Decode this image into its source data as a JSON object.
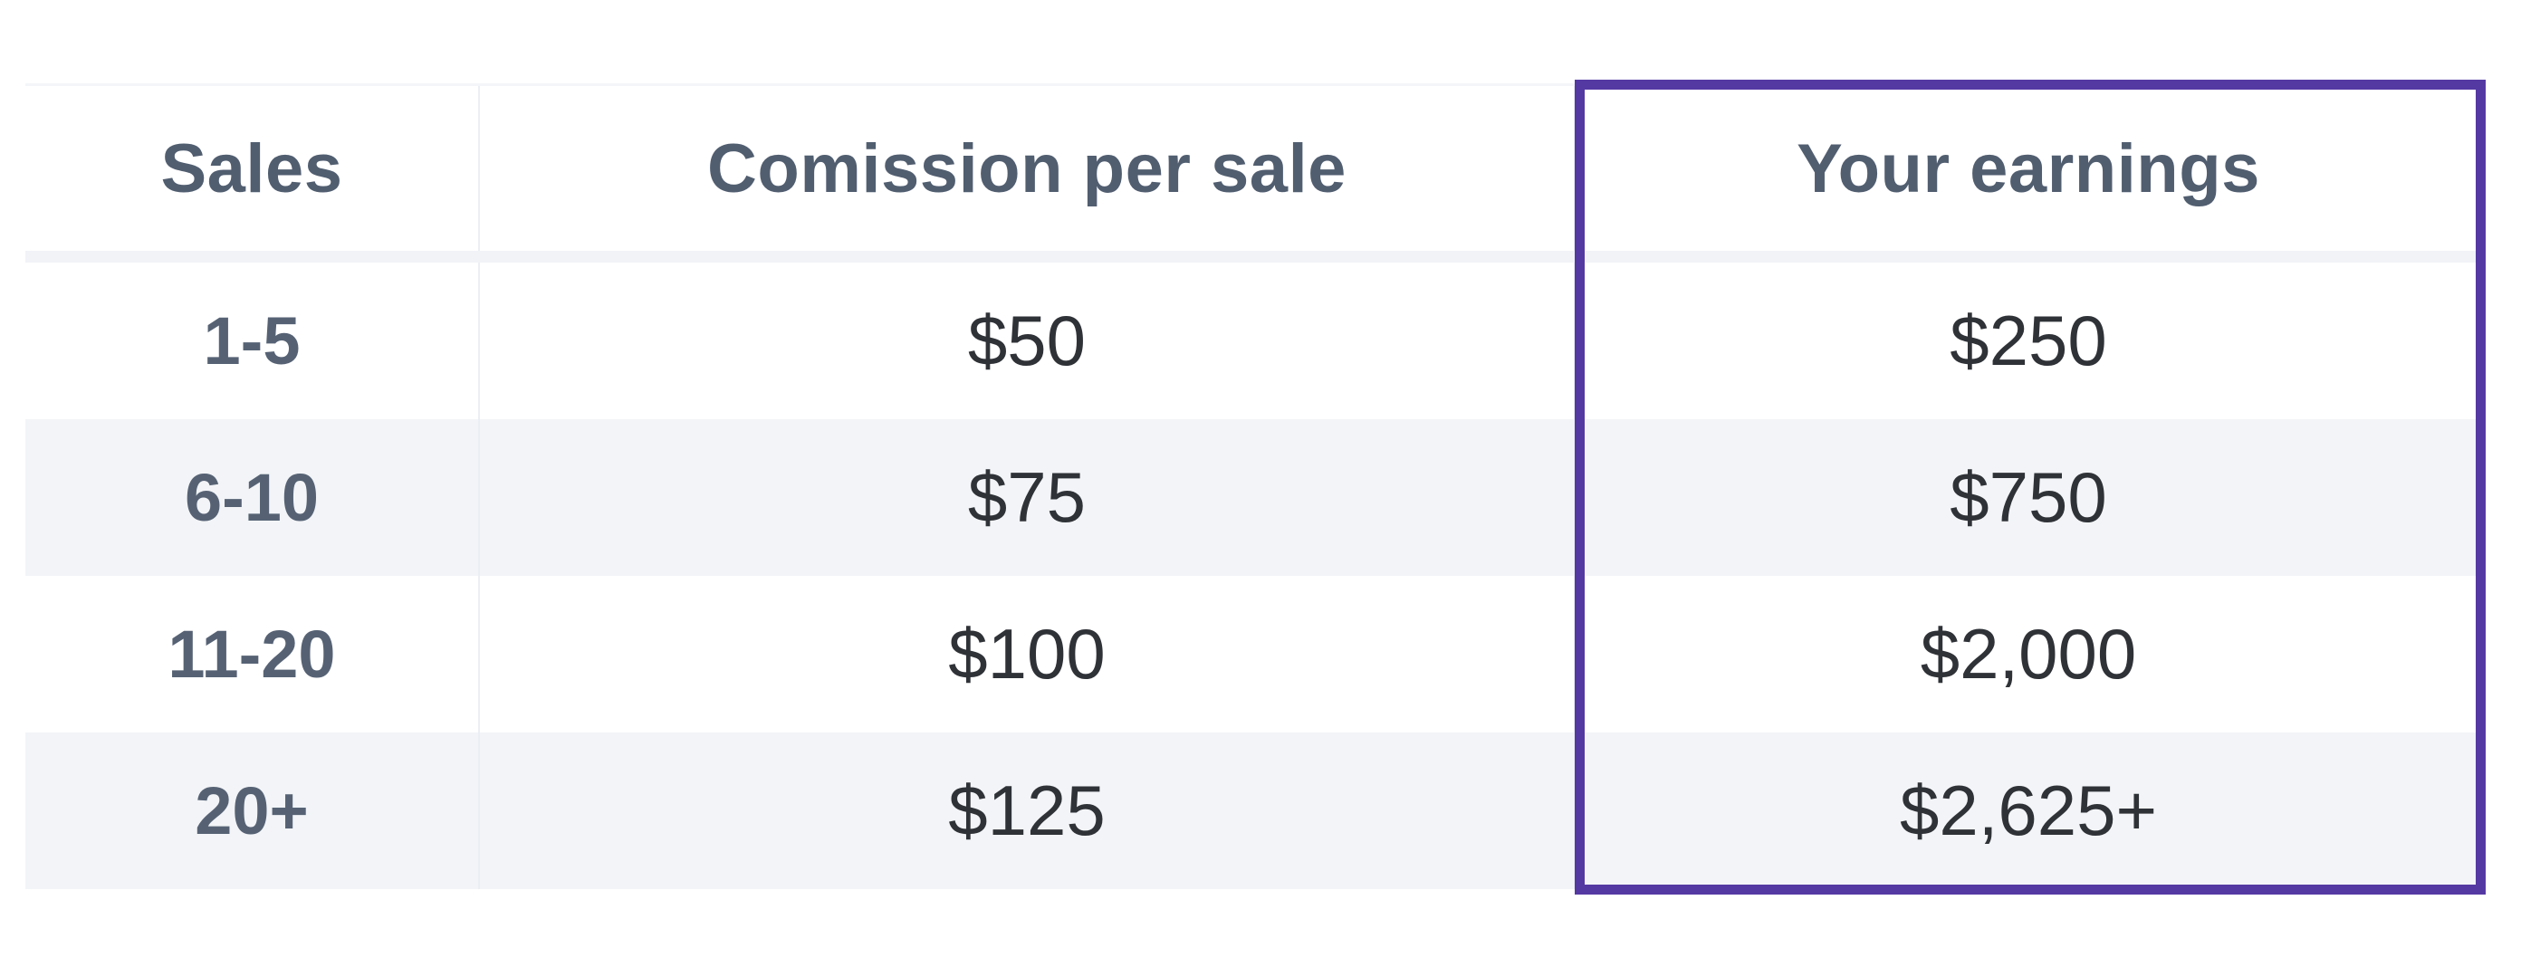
{
  "chart_data": {
    "type": "table",
    "columns": [
      "Sales",
      "Comission per sale",
      "Your earnings"
    ],
    "rows": [
      [
        "1-5",
        "$50",
        "$250"
      ],
      [
        "6-10",
        "$75",
        "$750"
      ],
      [
        "11-20",
        "$100",
        "$2,000"
      ],
      [
        "20+",
        "$125",
        "$2,625+"
      ]
    ],
    "highlighted_column": "Your earnings",
    "layout": {
      "stripe_pattern": "rows 2 and 4 shaded",
      "alignment": "center"
    }
  },
  "table": {
    "headers": {
      "sales": "Sales",
      "commission": "Comission per sale",
      "earnings": "Your earnings"
    },
    "rows": [
      {
        "range": "1-5",
        "commission": "$50",
        "earnings": "$250"
      },
      {
        "range": "6-10",
        "commission": "$75",
        "earnings": "$750"
      },
      {
        "range": "11-20",
        "commission": "$100",
        "earnings": "$2,000"
      },
      {
        "range": "20+",
        "commission": "$125",
        "earnings": "$2,625+"
      }
    ]
  },
  "colors": {
    "highlight_border": "#5539A3",
    "row_stripe": "#F2F4F7",
    "header_text": "#515E70",
    "value_text": "#2F3237",
    "header_divider": "#F1F3F7",
    "column_divider": "#EBEEF3"
  }
}
